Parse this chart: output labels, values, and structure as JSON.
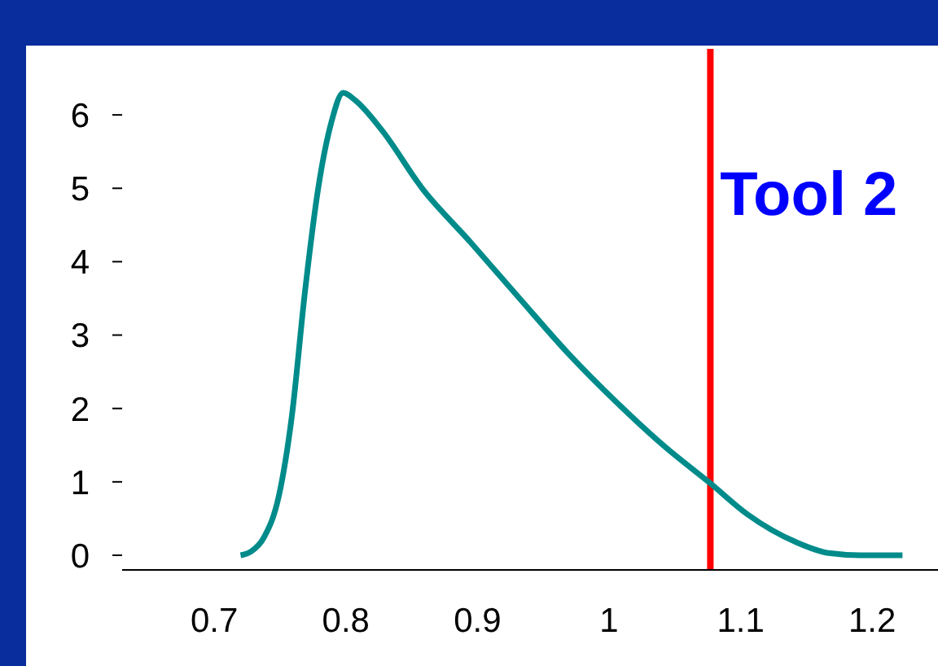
{
  "chart_data": {
    "type": "line",
    "x": [
      0.72,
      0.728,
      0.738,
      0.749,
      0.759,
      0.769,
      0.779,
      0.789,
      0.798,
      0.807,
      0.827,
      0.858,
      0.895,
      0.932,
      0.969,
      1.006,
      1.043,
      1.077,
      1.105,
      1.142,
      1.167,
      1.191,
      1.223
    ],
    "series": [
      {
        "color": "#008b8b",
        "values": [
          0,
          0.05,
          0.25,
          0.8,
          1.9,
          3.6,
          5.0,
          5.9,
          6.3,
          6.2,
          5.8,
          5.0,
          4.26,
          3.5,
          2.75,
          2.08,
          1.47,
          0.98,
          0.56,
          0.18,
          0.03,
          0,
          0
        ]
      }
    ],
    "xlim": [
      0.63,
      1.25
    ],
    "xticks": [
      0.7,
      0.8,
      0.9,
      1,
      1.1,
      1.2
    ],
    "ylim": [
      -0.2,
      6.9
    ],
    "yticks": [
      0,
      1,
      2,
      3,
      4,
      5,
      6
    ],
    "ref_lines": [
      {
        "axis": "x",
        "value": 1.077,
        "label": "Tool 2",
        "color": "#ff0000"
      }
    ],
    "grid": false,
    "legend": false,
    "marker": "none",
    "line_style": "solid"
  }
}
